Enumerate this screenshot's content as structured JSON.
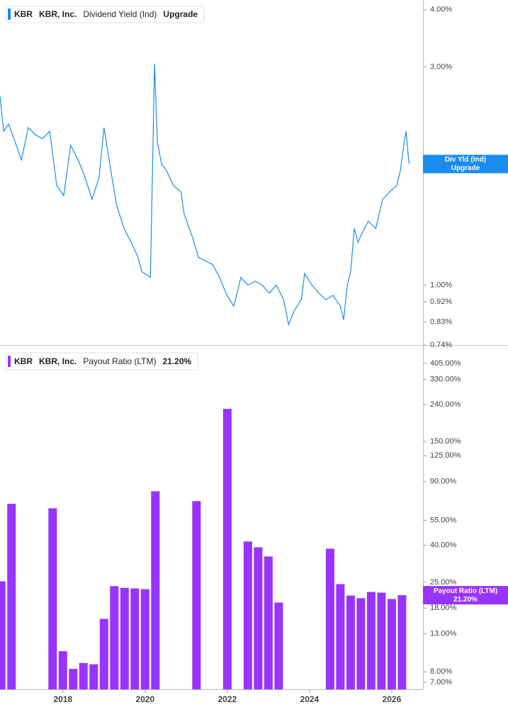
{
  "chart_data": [
    {
      "type": "line",
      "ticker": "KBR",
      "company": "KBR, Inc.",
      "status": "Upgrade",
      "badge_label": "Div Yld (Ind)",
      "log_scale": true,
      "xlim": [
        2016.47,
        2026.76
      ],
      "ylim": [
        0.74,
        4.2
      ],
      "yticks": [
        {
          "value": 4,
          "label": "4.00%"
        },
        {
          "value": 3,
          "label": "3.00%"
        },
        {
          "value": 1,
          "label": "1.00%"
        },
        {
          "value": 0.92,
          "label": "0.92%"
        },
        {
          "value": 0.83,
          "label": "0.83%"
        },
        {
          "value": 0.74,
          "label": "0.74%"
        }
      ],
      "x": [
        2016.47,
        2016.56,
        2016.68,
        2016.81,
        2016.99,
        2017.16,
        2017.33,
        2017.5,
        2017.68,
        2017.85,
        2018.02,
        2018.19,
        2018.37,
        2018.54,
        2018.71,
        2018.88,
        2019.0,
        2019.14,
        2019.31,
        2019.49,
        2019.66,
        2019.83,
        2019.92,
        2020.0,
        2020.13,
        2020.18,
        2020.23,
        2020.3,
        2020.4,
        2020.52,
        2020.69,
        2020.87,
        2020.95,
        2021.13,
        2021.3,
        2021.47,
        2021.64,
        2021.81,
        2021.99,
        2022.16,
        2022.33,
        2022.5,
        2022.68,
        2022.85,
        2023.02,
        2023.19,
        2023.37,
        2023.49,
        2023.63,
        2023.8,
        2023.88,
        2024.06,
        2024.23,
        2024.4,
        2024.57,
        2024.75,
        2024.83,
        2024.92,
        2025.0,
        2025.09,
        2025.18,
        2025.26,
        2025.43,
        2025.61,
        2025.78,
        2025.95,
        2026.12,
        2026.21,
        2026.3,
        2026.35,
        2026.41,
        2026.43
      ],
      "series": [
        {
          "name": "Dividend Yield (Ind)",
          "color": "#1a8cf0",
          "values": [
            2.59,
            2.17,
            2.25,
            2.09,
            1.88,
            2.21,
            2.13,
            2.09,
            2.17,
            1.65,
            1.57,
            2.02,
            1.88,
            1.72,
            1.54,
            1.72,
            2.21,
            1.84,
            1.49,
            1.33,
            1.24,
            1.15,
            1.07,
            1.06,
            1.04,
            1.78,
            3.05,
            2.05,
            1.84,
            1.78,
            1.65,
            1.6,
            1.43,
            1.29,
            1.15,
            1.13,
            1.11,
            1.04,
            0.95,
            0.9,
            1.04,
            1.0,
            1.02,
            1.0,
            0.96,
            1.0,
            0.93,
            0.82,
            0.88,
            0.93,
            1.06,
            1.0,
            0.96,
            0.93,
            0.95,
            0.9,
            0.84,
            1.0,
            1.07,
            1.33,
            1.24,
            1.29,
            1.38,
            1.33,
            1.54,
            1.6,
            1.65,
            1.78,
            2.05,
            2.17,
            1.88,
            1.84
          ]
        }
      ]
    },
    {
      "type": "bar",
      "ticker": "KBR",
      "company": "KBR, Inc.",
      "current_label": "21.20%",
      "log_scale": true,
      "xlim": [
        2016.47,
        2026.76
      ],
      "xticks": [
        2018,
        2020,
        2022,
        2024,
        2026
      ],
      "ylim": [
        6.4,
        498
      ],
      "yticks": [
        {
          "value": 405,
          "label": "405.00%"
        },
        {
          "value": 330,
          "label": "330.00%"
        },
        {
          "value": 240,
          "label": "240.00%"
        },
        {
          "value": 150,
          "label": "150.00%"
        },
        {
          "value": 125,
          "label": "125.00%"
        },
        {
          "value": 90,
          "label": "90.00%"
        },
        {
          "value": 55,
          "label": "55.00%"
        },
        {
          "value": 40,
          "label": "40.00%"
        },
        {
          "value": 25,
          "label": "25.00%"
        },
        {
          "value": 18,
          "label": "18.00%"
        },
        {
          "value": 13,
          "label": "13.00%"
        },
        {
          "value": 8,
          "label": "8.00%"
        },
        {
          "value": 7,
          "label": "7.00%"
        }
      ],
      "x": [
        2016.5,
        2016.75,
        2017.75,
        2018.0,
        2018.25,
        2018.5,
        2018.75,
        2019.0,
        2019.25,
        2019.5,
        2019.75,
        2020.0,
        2020.25,
        2021.25,
        2022.0,
        2022.5,
        2022.75,
        2023.0,
        2023.25,
        2024.5,
        2024.75,
        2025.0,
        2025.25,
        2025.5,
        2025.75,
        2026.0,
        2026.25
      ],
      "series": [
        {
          "name": "Payout Ratio (LTM)",
          "color": "#9933ff",
          "values": [
            25.3,
            67.8,
            64.1,
            10.4,
            8.3,
            8.95,
            8.8,
            15.7,
            23.8,
            23.3,
            23.1,
            22.9,
            79.6,
            70.2,
            227,
            42.0,
            39.0,
            34.7,
            19.3,
            38.3,
            24.4,
            21.1,
            20.4,
            22.1,
            21.9,
            20.2,
            21.2
          ]
        }
      ]
    }
  ]
}
